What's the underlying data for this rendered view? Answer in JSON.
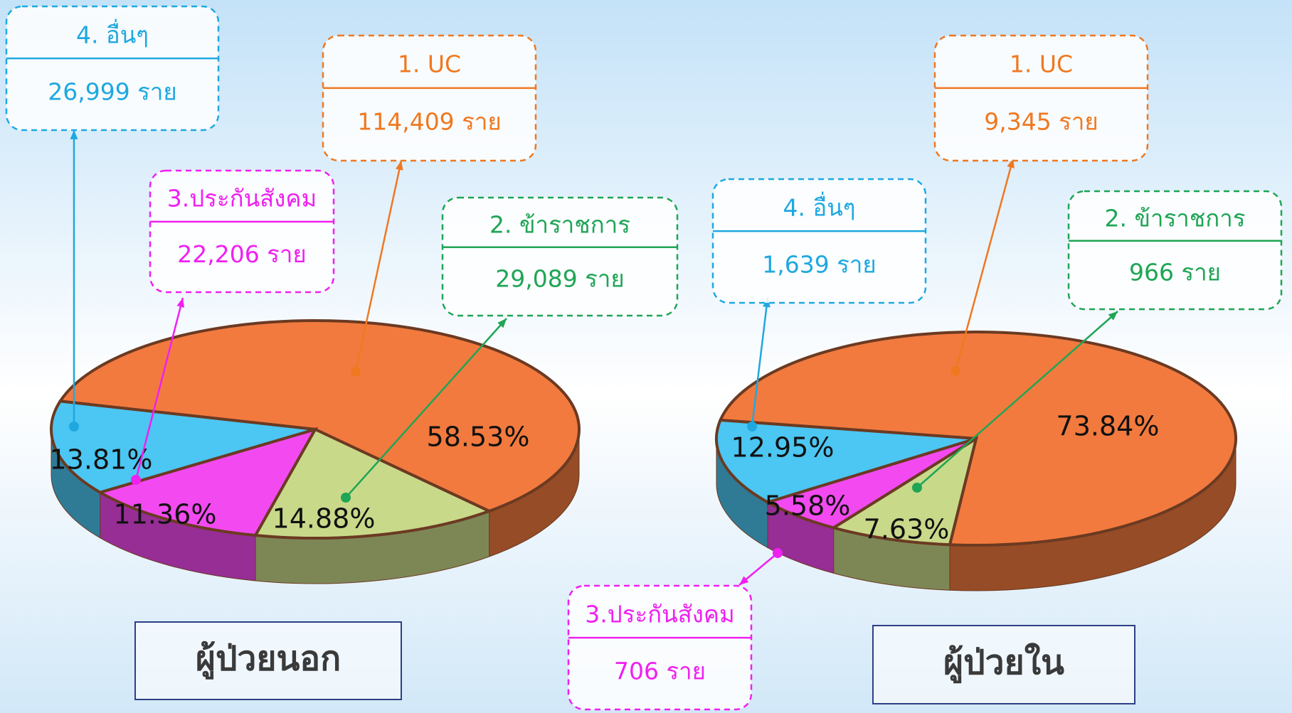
{
  "chart_data": [
    {
      "type": "pie",
      "title": "ผู้ป่วยนอก",
      "categories": [
        "1. UC",
        "2. ข้าราชการ",
        "3.ประกันสังคม",
        "4. อื่นๆ"
      ],
      "values": [
        58.53,
        14.88,
        11.36,
        13.81
      ],
      "value_labels": [
        "58.53%",
        "14.88%",
        "11.36%",
        "13.81%"
      ],
      "count_labels": [
        "114,409 ราย",
        "29,089 ราย",
        "22,206 ราย",
        "26,999 ราย"
      ],
      "colors": [
        "#f27a3e",
        "#c9d98a",
        "#f24af0",
        "#4cc6f2"
      ]
    },
    {
      "type": "pie",
      "title": "ผู้ป่วยใน",
      "categories": [
        "1. UC",
        "2. ข้าราชการ",
        "3.ประกันสังคม",
        "4. อื่นๆ"
      ],
      "values": [
        73.84,
        7.63,
        5.58,
        12.95
      ],
      "value_labels": [
        "73.84%",
        "7.63%",
        "5.58%",
        "12.95%"
      ],
      "count_labels": [
        "9,345 ราย",
        "966 ราย",
        "706 ราย",
        "1,639 ราย"
      ],
      "colors": [
        "#f27a3e",
        "#c9d98a",
        "#f24af0",
        "#4cc6f2"
      ]
    }
  ]
}
